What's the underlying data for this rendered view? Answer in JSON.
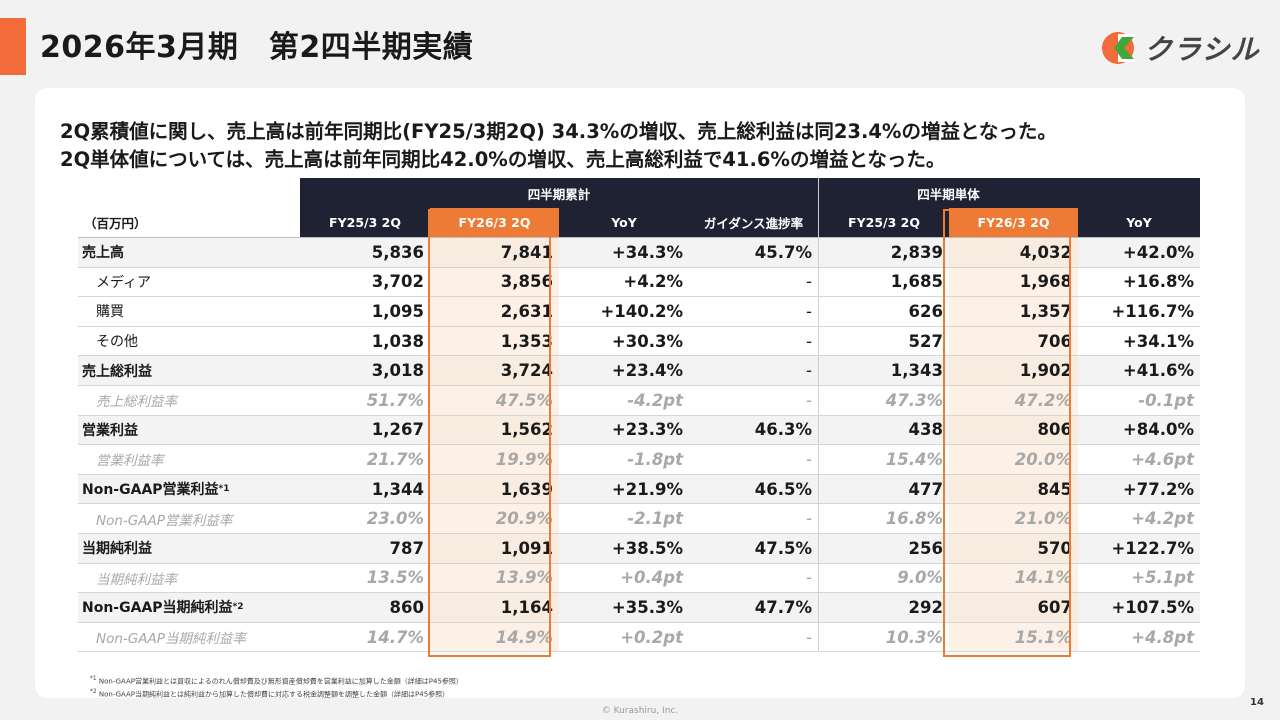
{
  "header": {
    "title": "2026年3月期　第2四半期実績",
    "logo_text": "クラシル",
    "brand_color": "#f26b3a"
  },
  "lead": [
    "2Q累積値に関し、売上高は前年同期比(FY25/3期2Q) 34.3%の増収、売上総利益は同23.4%の増益となった。",
    "2Q単体値については、売上高は前年同期比42.0%の増収、売上高総利益で41.6%の増益となった。"
  ],
  "table": {
    "group_cumulative": "四半期累計",
    "group_single": "四半期単体",
    "unit": "（百万円）",
    "columns": [
      "FY25/3 2Q",
      "FY26/3 2Q",
      "YoY",
      "ガイダンス進捗率",
      "FY25/3 2Q",
      "FY26/3 2Q",
      "YoY"
    ],
    "rows": [
      {
        "label": "売上高",
        "kind": "main",
        "values": [
          "5,836",
          "7,841",
          "+34.3%",
          "45.7%",
          "2,839",
          "4,032",
          "+42.0%"
        ]
      },
      {
        "label": "メディア",
        "kind": "sub",
        "values": [
          "3,702",
          "3,856",
          "+4.2%",
          "-",
          "1,685",
          "1,968",
          "+16.8%"
        ]
      },
      {
        "label": "購買",
        "kind": "sub",
        "values": [
          "1,095",
          "2,631",
          "+140.2%",
          "-",
          "626",
          "1,357",
          "+116.7%"
        ]
      },
      {
        "label": "その他",
        "kind": "sub",
        "values": [
          "1,038",
          "1,353",
          "+30.3%",
          "-",
          "527",
          "706",
          "+34.1%"
        ]
      },
      {
        "label": "売上総利益",
        "kind": "main",
        "values": [
          "3,018",
          "3,724",
          "+23.4%",
          "-",
          "1,343",
          "1,902",
          "+41.6%"
        ]
      },
      {
        "label": "売上総利益率",
        "kind": "ratio",
        "values": [
          "51.7%",
          "47.5%",
          "-4.2pt",
          "-",
          "47.3%",
          "47.2%",
          "-0.1pt"
        ]
      },
      {
        "label": "営業利益",
        "kind": "main",
        "values": [
          "1,267",
          "1,562",
          "+23.3%",
          "46.3%",
          "438",
          "806",
          "+84.0%"
        ]
      },
      {
        "label": "営業利益率",
        "kind": "ratio",
        "values": [
          "21.7%",
          "19.9%",
          "-1.8pt",
          "-",
          "15.4%",
          "20.0%",
          "+4.6pt"
        ]
      },
      {
        "label": "Non-GAAP営業利益",
        "sup": "*1",
        "kind": "main",
        "values": [
          "1,344",
          "1,639",
          "+21.9%",
          "46.5%",
          "477",
          "845",
          "+77.2%"
        ]
      },
      {
        "label": "Non-GAAP営業利益率",
        "kind": "ratio",
        "values": [
          "23.0%",
          "20.9%",
          "-2.1pt",
          "-",
          "16.8%",
          "21.0%",
          "+4.2pt"
        ]
      },
      {
        "label": "当期純利益",
        "kind": "main",
        "values": [
          "787",
          "1,091",
          "+38.5%",
          "47.5%",
          "256",
          "570",
          "+122.7%"
        ]
      },
      {
        "label": "当期純利益率",
        "kind": "ratio",
        "values": [
          "13.5%",
          "13.9%",
          "+0.4pt",
          "-",
          "9.0%",
          "14.1%",
          "+5.1pt"
        ]
      },
      {
        "label": "Non-GAAP当期純利益",
        "sup": "*2",
        "kind": "main",
        "values": [
          "860",
          "1,164",
          "+35.3%",
          "47.7%",
          "292",
          "607",
          "+107.5%"
        ]
      },
      {
        "label": "Non-GAAP当期純利益率",
        "kind": "ratio",
        "values": [
          "14.7%",
          "14.9%",
          "+0.2pt",
          "-",
          "10.3%",
          "15.1%",
          "+4.8pt"
        ]
      }
    ]
  },
  "footnotes": [
    {
      "mark": "*1",
      "text": "Non-GAAP営業利益とは買収によるのれん償却費及び無形資産償却費を営業利益に加算した金額（詳細はP45参照）"
    },
    {
      "mark": "*2",
      "text": "Non-GAAP当期純利益とは純利益から加算した償却費に対応する税金調整額を調整した金額（詳細はP45参照）"
    }
  ],
  "copyright": "© Kurashiru, Inc.",
  "page_number": "14"
}
